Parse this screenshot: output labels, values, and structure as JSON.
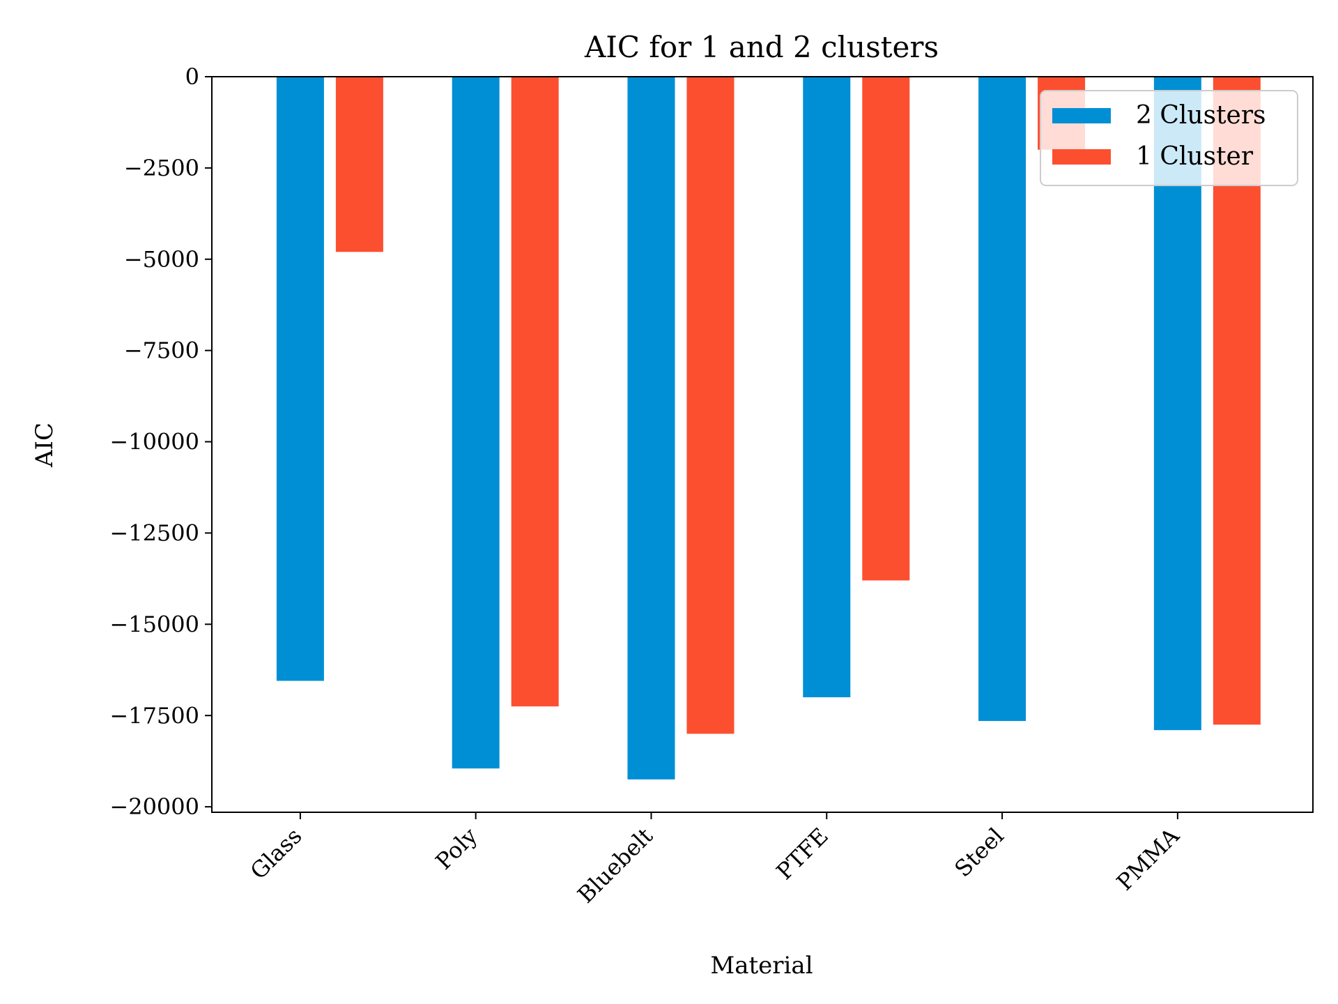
{
  "chart_data": {
    "type": "bar",
    "title": "AIC for 1 and 2 clusters",
    "xlabel": "Material",
    "ylabel": "AIC",
    "categories": [
      "Glass",
      "Poly",
      "Bluebelt",
      "PTFE",
      "Steel",
      "PMMA"
    ],
    "series": [
      {
        "name": "2 Clusters",
        "color": "#008fd5",
        "values": [
          -16550,
          -18950,
          -19250,
          -17000,
          -17650,
          -17900
        ]
      },
      {
        "name": "1 Cluster",
        "color": "#fc4f30",
        "values": [
          -4800,
          -17250,
          -18000,
          -13800,
          -2000,
          -17750
        ]
      }
    ],
    "ylim": [
      -20150,
      0
    ],
    "yticks": [
      0,
      -2500,
      -5000,
      -7500,
      -10000,
      -12500,
      -15000,
      -17500,
      -20000
    ],
    "grid": false,
    "legend_position": "upper right"
  }
}
